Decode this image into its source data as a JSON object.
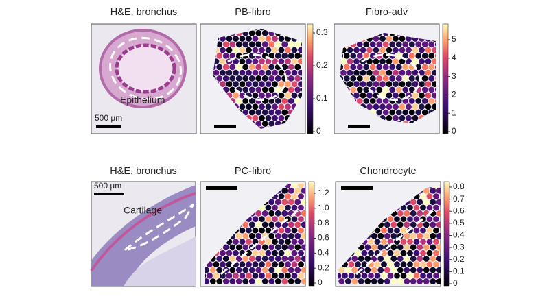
{
  "figure": {
    "rows": [
      {
        "panels": [
          {
            "title": "H&E, bronchus",
            "annotation": "Epithelium",
            "scale_label": "500 µm"
          },
          {
            "title": "PB-fibro",
            "colorbar_ticks": [
              "0",
              "0.1",
              "0.2",
              "0.3"
            ]
          },
          {
            "title": "Fibro-adv",
            "colorbar_ticks": [
              "0",
              "1",
              "2",
              "3",
              "4",
              "5"
            ]
          }
        ]
      },
      {
        "panels": [
          {
            "title": "H&E, bronchus",
            "annotation": "Cartilage",
            "scale_label": "500 µm"
          },
          {
            "title": "PC-fibro",
            "colorbar_ticks": [
              "0",
              "0.2",
              "0.4",
              "0.6",
              "0.8",
              "1.0",
              "1.2"
            ]
          },
          {
            "title": "Chondrocyte",
            "colorbar_ticks": [
              "0",
              "0.1",
              "0.2",
              "0.3",
              "0.4",
              "0.5",
              "0.6",
              "0.7",
              "0.8"
            ]
          }
        ]
      }
    ]
  }
}
